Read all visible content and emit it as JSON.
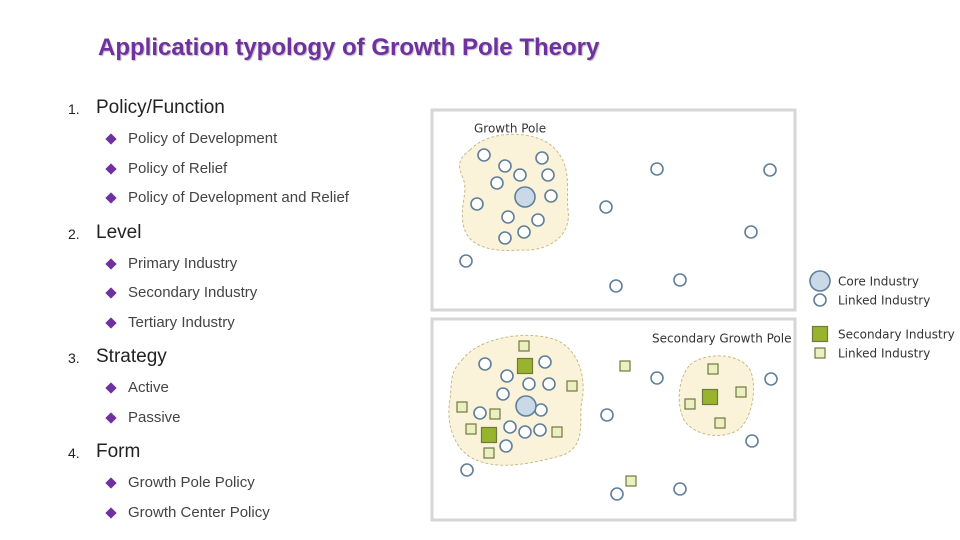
{
  "title": "Application typology of Growth Pole Theory",
  "sections": [
    {
      "number": "1.",
      "heading": "Policy/Function",
      "items": [
        "Policy of Development",
        "Policy of Relief",
        "Policy of Development and Relief"
      ]
    },
    {
      "number": "2.",
      "heading": "Level",
      "items": [
        "Primary Industry",
        "Secondary Industry",
        "Tertiary Industry"
      ]
    },
    {
      "number": "3.",
      "heading": "Strategy",
      "items": [
        "Active",
        "Passive"
      ]
    },
    {
      "number": "4.",
      "heading": "Form",
      "items": [
        "Growth Pole Policy",
        "Growth Center Policy"
      ]
    }
  ],
  "diagram": {
    "panel_labels": [
      "Growth Pole",
      "Secondary Growth Pole"
    ],
    "legend": [
      "Core Industry",
      "Linked Industry",
      "Secondary Industry",
      "Linked Industry"
    ]
  }
}
